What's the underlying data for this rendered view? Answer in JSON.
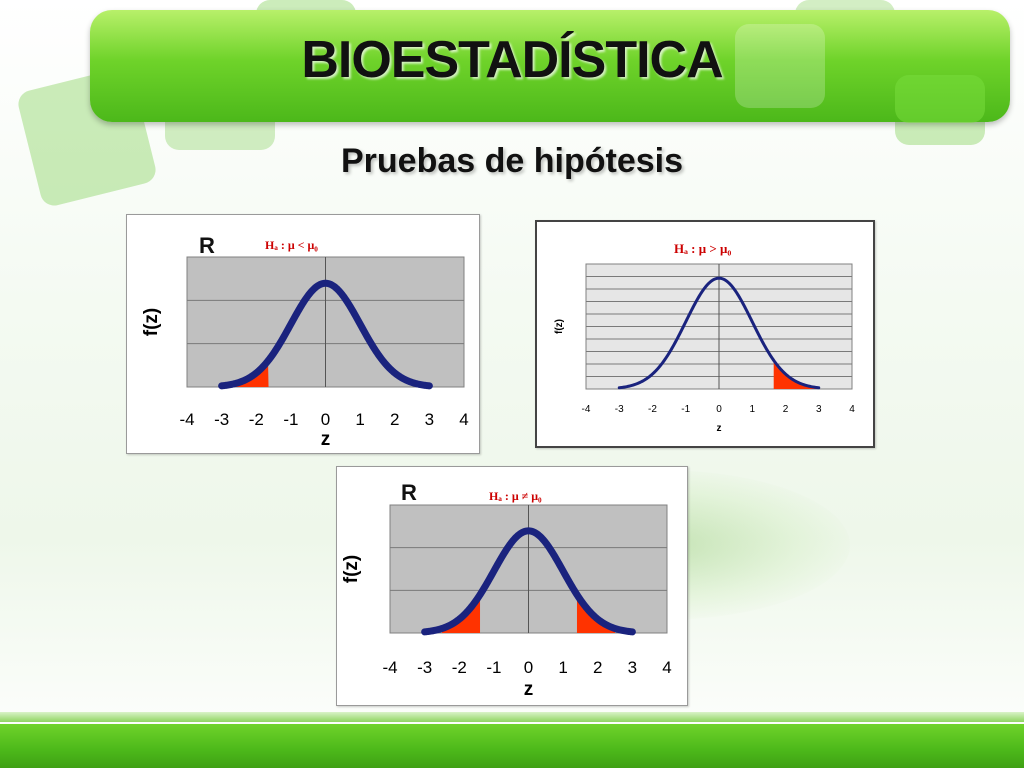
{
  "slide": {
    "title": "BIOESTADÍSTICA",
    "subtitle": "Pruebas de hipótesis"
  },
  "colors": {
    "curve": "#1a237e",
    "tail_fill": "#ff3300",
    "plot_bg_left": "#c0c0c0",
    "plot_bg_right": "#e6e6e6",
    "label_red": "#cc0000",
    "brand_green": "#5cc41f"
  },
  "chart_data": [
    {
      "type": "area",
      "hypothesis_label": "Hₐ : μ < μ₀",
      "corner_text": "R",
      "xlabel": "z",
      "ylabel": "f(z)",
      "xlim": [
        -4,
        4
      ],
      "x_ticks": [
        -4,
        -3,
        -2,
        -1,
        0,
        1,
        2,
        3,
        4
      ],
      "curve": "standard normal density",
      "curve_x_range": [
        -3,
        3
      ],
      "shaded_regions": [
        [
          -3,
          -1.645
        ]
      ],
      "grid": "horizontal",
      "plot_background": "gray"
    },
    {
      "type": "area",
      "hypothesis_label": "Hₐ : μ > μ₀",
      "xlabel": "z",
      "ylabel": "f(z)",
      "xlim": [
        -4,
        4
      ],
      "x_ticks": [
        -4,
        -3,
        -2,
        -1,
        0,
        1,
        2,
        3,
        4
      ],
      "curve": "standard normal density",
      "curve_x_range": [
        -3,
        3
      ],
      "shaded_regions": [
        [
          1.645,
          3
        ]
      ],
      "grid": "horizontal",
      "plot_background": "light-gray"
    },
    {
      "type": "area",
      "hypothesis_label": "Hₐ : μ ≠ μ₀",
      "corner_text": "R",
      "xlabel": "z",
      "ylabel": "f(z)",
      "xlim": [
        -4,
        4
      ],
      "x_ticks": [
        -4,
        -3,
        -2,
        -1,
        0,
        1,
        2,
        3,
        4
      ],
      "curve": "standard normal density",
      "curve_x_range": [
        -3,
        3
      ],
      "shaded_regions": [
        [
          -2.5,
          -1.4
        ],
        [
          1.4,
          2.5
        ]
      ],
      "grid": "horizontal",
      "plot_background": "gray"
    }
  ]
}
